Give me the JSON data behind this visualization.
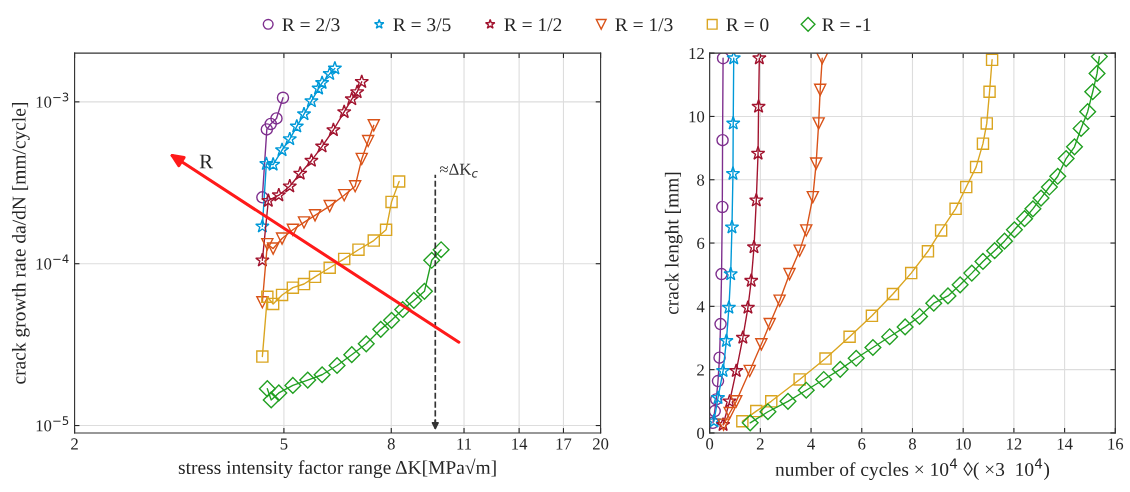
{
  "chart_data": [
    {
      "type": "line",
      "xlabel": "stress intensity factor range ΔK[MPa√m]",
      "ylabel": "crack growth rate da/dN [mm/cycle]",
      "log": "xy",
      "grid": true,
      "legend": "top",
      "xlim": [
        2,
        20
      ],
      "xticks": [
        2,
        5,
        8,
        11,
        14,
        17,
        20
      ],
      "ylim": [
        9e-06,
        0.002
      ],
      "yticks": [
        {
          "value": 1e-05,
          "label": "10$^{−5}$"
        },
        {
          "value": 0.0001,
          "label": "10$^{−4}$"
        },
        {
          "value": 0.001,
          "label": "10$^{−3}$"
        }
      ],
      "annotations": [
        "R"
      ],
      "ref_lines": [
        {
          "axis": "x",
          "value": 9.7,
          "label": "≈ΔK$_{c}$",
          "color": "#333333",
          "line_style": "dashed"
        }
      ],
      "series": [
        {
          "name": "R = 2/3",
          "color": "#7e2f8e",
          "marker": "circle",
          "x": [
            4.55,
            4.64,
            4.72,
            4.84,
            4.98
          ],
          "values": [
            0.000257,
            0.000676,
            0.00073,
            0.00079,
            0.00106
          ]
        },
        {
          "name": "R = 3/5",
          "color": "#0099d8",
          "marker": "star",
          "x": [
            4.55,
            4.63,
            4.77,
            4.96,
            5.13,
            5.29,
            5.46,
            5.64,
            5.82,
            5.91,
            6.11,
            6.25
          ],
          "values": [
            0.00017,
            0.000414,
            0.00041,
            0.000504,
            0.000589,
            0.000705,
            0.00084,
            0.00101,
            0.00121,
            0.00131,
            0.00149,
            0.00161
          ]
        },
        {
          "name": "R = 1/2",
          "color": "#a2142f",
          "marker": "star",
          "x": [
            4.55,
            4.67,
            4.89,
            5.13,
            5.37,
            5.64,
            5.91,
            6.21,
            6.51,
            6.73,
            6.89,
            7.03
          ],
          "values": [
            0.000105,
            0.000245,
            0.000265,
            0.000301,
            0.000361,
            0.000433,
            0.000531,
            0.00067,
            0.000866,
            0.00104,
            0.00115,
            0.00133
          ]
        },
        {
          "name": "R = 1/3",
          "color": "#d95319",
          "marker": "triangle",
          "x": [
            4.55,
            4.65,
            4.77,
            4.96,
            5.2,
            5.46,
            5.73,
            6.11,
            6.51,
            6.83,
            7.03,
            7.23,
            7.41
          ],
          "values": [
            5.78e-05,
            0.000132,
            0.000124,
            0.000143,
            0.000162,
            0.00018,
            0.000199,
            0.000227,
            0.000265,
            0.000301,
            0.000444,
            0.000573,
            0.000716
          ]
        },
        {
          "name": "R = 0",
          "color": "#daa520",
          "marker": "square",
          "x": [
            4.55,
            4.65,
            4.77,
            4.96,
            5.2,
            5.46,
            5.73,
            6.11,
            6.51,
            6.93,
            7.41,
            7.82,
            8.01,
            8.28
          ],
          "values": [
            2.67e-05,
            6.25e-05,
            5.64e-05,
            6.41e-05,
            7.11e-05,
            7.49e-05,
            8.3e-05,
            9.44e-05,
            0.000107,
            0.000122,
            0.000139,
            0.000162,
            0.000241,
            0.000322
          ]
        },
        {
          "name": "R = -1",
          "color": "#22a022",
          "marker": "diamond",
          "x": [
            4.65,
            4.73,
            4.89,
            5.2,
            5.55,
            5.91,
            6.31,
            6.73,
            7.17,
            7.64,
            8.01,
            8.41,
            8.83,
            9.25,
            9.55,
            9.95
          ],
          "values": [
            1.69e-05,
            1.44e-05,
            1.59e-05,
            1.77e-05,
            1.91e-05,
            2.06e-05,
            2.35e-05,
            2.74e-05,
            3.2e-05,
            3.93e-05,
            4.47e-05,
            5.21e-05,
            5.93e-05,
            6.75e-05,
            0.000105,
            0.000122
          ]
        }
      ]
    },
    {
      "type": "line",
      "xlabel": "number of cycles × 10$^{4}$ ◊( ×3  10$^{4}$)",
      "ylabel": "crack lenght [mm]",
      "grid": true,
      "xlim": [
        0,
        16
      ],
      "xticks": [
        0,
        2,
        4,
        6,
        8,
        10,
        12,
        14,
        16
      ],
      "ylim": [
        0,
        12
      ],
      "yticks": [
        0,
        2,
        4,
        6,
        8,
        10,
        12
      ],
      "series": [
        {
          "color": "#7e2f8e",
          "marker": "circle",
          "x": [
            0.13,
            0.2,
            0.26,
            0.33,
            0.39,
            0.43,
            0.47,
            0.5,
            0.51,
            0.53
          ],
          "values": [
            0.32,
            0.69,
            1.06,
            1.64,
            2.38,
            3.44,
            5.02,
            7.14,
            9.25,
            11.84
          ]
        },
        {
          "color": "#0099d8",
          "marker": "star",
          "x": [
            0.17,
            0.33,
            0.53,
            0.66,
            0.76,
            0.83,
            0.88,
            0.92,
            0.93,
            0.95
          ],
          "values": [
            0.37,
            1.11,
            1.96,
            2.91,
            3.96,
            5.02,
            6.5,
            8.19,
            9.78,
            11.84
          ]
        },
        {
          "color": "#a2142f",
          "marker": "star",
          "x": [
            0.53,
            0.79,
            1.05,
            1.31,
            1.51,
            1.64,
            1.75,
            1.84,
            1.91,
            1.93,
            1.96
          ],
          "values": [
            0.26,
            1.0,
            1.96,
            3.01,
            3.96,
            4.81,
            5.87,
            7.35,
            8.83,
            10.31,
            11.84
          ]
        },
        {
          "color": "#d95319",
          "marker": "triangle",
          "x": [
            0.55,
            0.79,
            1.05,
            1.58,
            2.04,
            2.37,
            2.76,
            3.15,
            3.55,
            3.81,
            4.07,
            4.2,
            4.3,
            4.36,
            4.44
          ],
          "values": [
            0.26,
            0.63,
            1.0,
            1.96,
            2.8,
            3.44,
            4.18,
            5.02,
            5.76,
            6.4,
            7.45,
            8.51,
            9.78,
            10.84,
            11.84
          ]
        },
        {
          "color": "#daa520",
          "marker": "square",
          "x": [
            1.29,
            1.84,
            2.43,
            3.55,
            4.57,
            5.52,
            6.4,
            7.23,
            7.95,
            8.61,
            9.13,
            9.7,
            10.12,
            10.51,
            10.78,
            10.93,
            11.04,
            11.14
          ],
          "values": [
            0.37,
            0.69,
            1.0,
            1.69,
            2.35,
            3.04,
            3.7,
            4.39,
            5.05,
            5.74,
            6.4,
            7.08,
            7.77,
            8.4,
            9.14,
            9.78,
            10.78,
            11.79
          ]
        },
        {
          "color": "#22a022",
          "marker": "diamond",
          "x": [
            1.6,
            2.3,
            3.09,
            3.81,
            4.5,
            5.15,
            5.78,
            6.44,
            7.1,
            7.71,
            8.28,
            8.84,
            9.4,
            9.88,
            10.34,
            10.78,
            11.24,
            11.63,
            12.02,
            12.42,
            12.75,
            13.07,
            13.4,
            13.73,
            14.06,
            14.39,
            14.65,
            14.91,
            15.11,
            15.28,
            15.37
          ],
          "values": [
            0.32,
            0.67,
            1.0,
            1.35,
            1.69,
            2.01,
            2.36,
            2.7,
            3.04,
            3.35,
            3.68,
            4.1,
            4.33,
            4.68,
            5.05,
            5.42,
            5.76,
            6.06,
            6.42,
            6.77,
            7.08,
            7.42,
            7.77,
            8.11,
            8.67,
            9.04,
            9.62,
            10.15,
            10.78,
            11.36,
            11.89
          ]
        }
      ]
    }
  ]
}
